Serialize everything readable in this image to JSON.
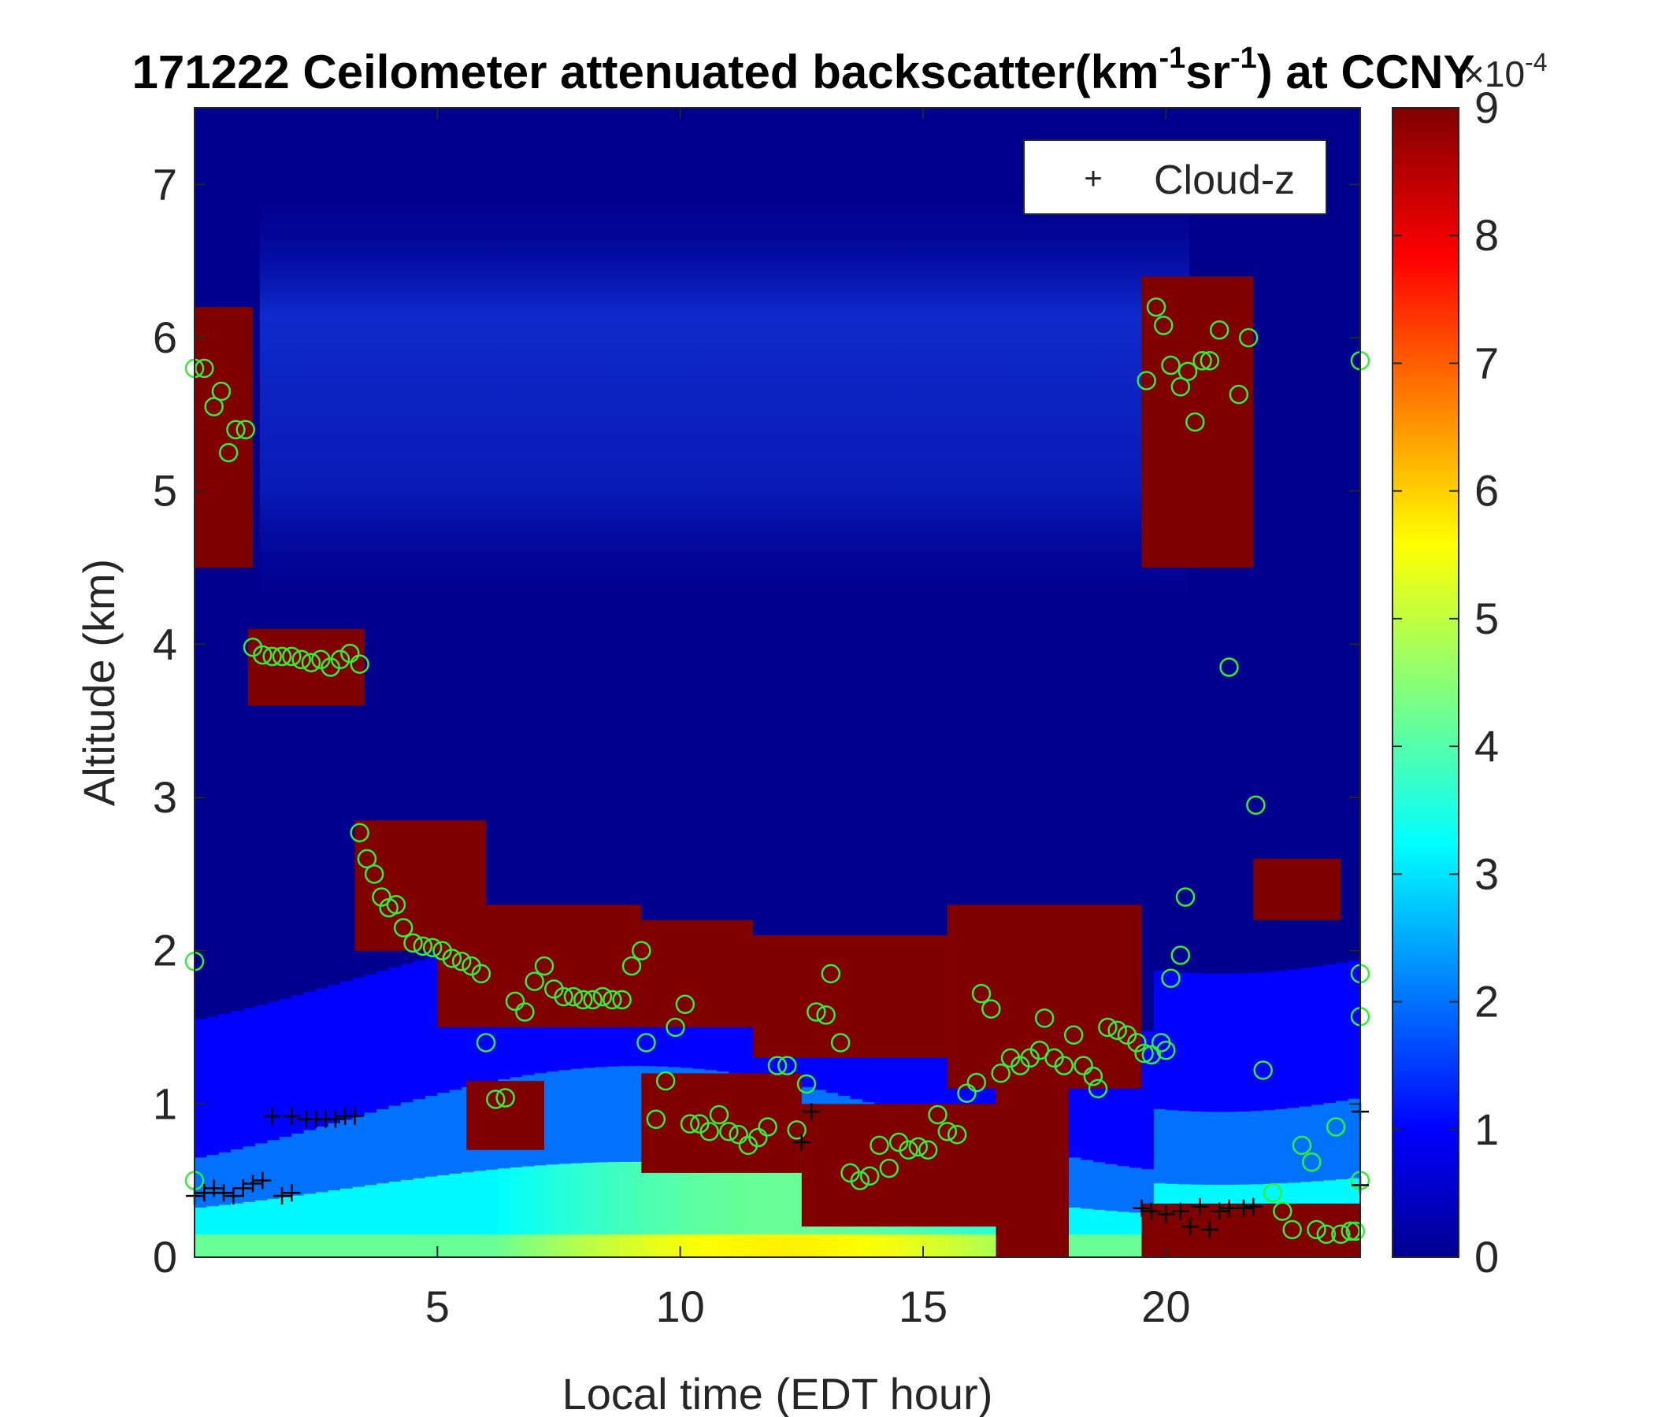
{
  "chart_data": {
    "type": "heatmap",
    "title_main": "171222 Ceilometer attenuated backscatter(km",
    "title_sup1": "-1",
    "title_mid": "sr",
    "title_sup2": "-1",
    "title_end": ") at CCNY",
    "xlabel": "Local time (EDT hour)",
    "ylabel": "Altitude (km)",
    "xlim": [
      0,
      24
    ],
    "ylim": [
      0,
      7.5
    ],
    "xticks": [
      5,
      10,
      15,
      20
    ],
    "yticks": [
      0,
      1,
      2,
      3,
      4,
      5,
      6,
      7
    ],
    "colorbar": {
      "range": [
        0,
        9
      ],
      "ticks": [
        0,
        1,
        2,
        3,
        4,
        5,
        6,
        7,
        8,
        9
      ],
      "exponent_base": "×10",
      "exponent_power": "-4",
      "colormap": "jet"
    },
    "legend": {
      "placement": "top-right",
      "label": "Cloud-z",
      "marker": "+"
    },
    "layers": [
      {
        "x0": 0,
        "x1": 1.2,
        "y0": 4.5,
        "y1": 6.2,
        "v": 9
      },
      {
        "x0": 1.1,
        "x1": 3.5,
        "y0": 3.6,
        "y1": 4.1,
        "v": 9
      },
      {
        "x0": 3.3,
        "x1": 6,
        "y0": 2.0,
        "y1": 2.85,
        "v": 9
      },
      {
        "x0": 5,
        "x1": 9.2,
        "y0": 1.5,
        "y1": 2.3,
        "v": 9
      },
      {
        "x0": 9.2,
        "x1": 11.5,
        "y0": 1.5,
        "y1": 2.2,
        "v": 9
      },
      {
        "x0": 11.5,
        "x1": 15.5,
        "y0": 1.3,
        "y1": 2.1,
        "v": 9
      },
      {
        "x0": 15.5,
        "x1": 19.5,
        "y0": 1.1,
        "y1": 2.3,
        "v": 9
      },
      {
        "x0": 19.5,
        "x1": 21.8,
        "y0": 4.5,
        "y1": 6.4,
        "v": 9
      },
      {
        "x0": 21.8,
        "x1": 23.6,
        "y0": 2.2,
        "y1": 2.6,
        "v": 9
      },
      {
        "x0": 5.6,
        "x1": 7.2,
        "y0": 0.7,
        "y1": 1.15,
        "v": 9
      },
      {
        "x0": 9.2,
        "x1": 12.5,
        "y0": 0.55,
        "y1": 1.2,
        "v": 9
      },
      {
        "x0": 12.5,
        "x1": 16.5,
        "y0": 0.2,
        "y1": 1.0,
        "v": 9
      },
      {
        "x0": 16.5,
        "x1": 18,
        "y0": 0,
        "y1": 1.5,
        "v": 9
      },
      {
        "x0": 19.5,
        "x1": 24,
        "y0": 0,
        "y1": 0.35,
        "v": 9
      }
    ],
    "cloud_base": [
      {
        "x": 0.0,
        "y": 5.8
      },
      {
        "x": 0.2,
        "y": 5.8
      },
      {
        "x": 0.4,
        "y": 5.55
      },
      {
        "x": 0.55,
        "y": 5.65
      },
      {
        "x": 0.7,
        "y": 5.25
      },
      {
        "x": 0.85,
        "y": 5.4
      },
      {
        "x": 1.05,
        "y": 5.4
      },
      {
        "x": 1.2,
        "y": 3.98
      },
      {
        "x": 1.4,
        "y": 3.93
      },
      {
        "x": 1.6,
        "y": 3.92
      },
      {
        "x": 1.8,
        "y": 3.92
      },
      {
        "x": 2.0,
        "y": 3.92
      },
      {
        "x": 2.2,
        "y": 3.9
      },
      {
        "x": 2.4,
        "y": 3.88
      },
      {
        "x": 2.6,
        "y": 3.9
      },
      {
        "x": 2.8,
        "y": 3.85
      },
      {
        "x": 3.0,
        "y": 3.9
      },
      {
        "x": 3.2,
        "y": 3.94
      },
      {
        "x": 3.4,
        "y": 3.87
      },
      {
        "x": 3.4,
        "y": 2.77
      },
      {
        "x": 3.55,
        "y": 2.6
      },
      {
        "x": 3.7,
        "y": 2.5
      },
      {
        "x": 3.85,
        "y": 2.35
      },
      {
        "x": 4.0,
        "y": 2.28
      },
      {
        "x": 4.15,
        "y": 2.3
      },
      {
        "x": 4.3,
        "y": 2.15
      },
      {
        "x": 4.5,
        "y": 2.05
      },
      {
        "x": 4.7,
        "y": 2.03
      },
      {
        "x": 4.9,
        "y": 2.02
      },
      {
        "x": 5.1,
        "y": 2.0
      },
      {
        "x": 5.3,
        "y": 1.95
      },
      {
        "x": 5.5,
        "y": 1.93
      },
      {
        "x": 5.7,
        "y": 1.9
      },
      {
        "x": 5.9,
        "y": 1.85
      },
      {
        "x": 6.0,
        "y": 1.4
      },
      {
        "x": 6.2,
        "y": 1.03
      },
      {
        "x": 6.4,
        "y": 1.04
      },
      {
        "x": 6.6,
        "y": 1.67
      },
      {
        "x": 6.8,
        "y": 1.6
      },
      {
        "x": 7.0,
        "y": 1.8
      },
      {
        "x": 7.2,
        "y": 1.9
      },
      {
        "x": 7.4,
        "y": 1.75
      },
      {
        "x": 7.6,
        "y": 1.7
      },
      {
        "x": 7.8,
        "y": 1.7
      },
      {
        "x": 8.0,
        "y": 1.68
      },
      {
        "x": 8.2,
        "y": 1.68
      },
      {
        "x": 8.4,
        "y": 1.7
      },
      {
        "x": 8.6,
        "y": 1.68
      },
      {
        "x": 8.8,
        "y": 1.68
      },
      {
        "x": 9.0,
        "y": 1.9
      },
      {
        "x": 9.2,
        "y": 2.0
      },
      {
        "x": 9.3,
        "y": 1.4
      },
      {
        "x": 9.5,
        "y": 0.9
      },
      {
        "x": 9.7,
        "y": 1.15
      },
      {
        "x": 9.9,
        "y": 1.5
      },
      {
        "x": 10.1,
        "y": 1.65
      },
      {
        "x": 10.2,
        "y": 0.87
      },
      {
        "x": 10.4,
        "y": 0.87
      },
      {
        "x": 10.6,
        "y": 0.82
      },
      {
        "x": 10.8,
        "y": 0.93
      },
      {
        "x": 11.0,
        "y": 0.82
      },
      {
        "x": 11.2,
        "y": 0.8
      },
      {
        "x": 11.4,
        "y": 0.73
      },
      {
        "x": 11.6,
        "y": 0.78
      },
      {
        "x": 11.8,
        "y": 0.85
      },
      {
        "x": 12.0,
        "y": 1.25
      },
      {
        "x": 12.2,
        "y": 1.25
      },
      {
        "x": 12.4,
        "y": 0.83
      },
      {
        "x": 12.6,
        "y": 1.13
      },
      {
        "x": 12.8,
        "y": 1.6
      },
      {
        "x": 13.0,
        "y": 1.58
      },
      {
        "x": 13.1,
        "y": 1.85
      },
      {
        "x": 13.3,
        "y": 1.4
      },
      {
        "x": 13.5,
        "y": 0.55
      },
      {
        "x": 13.7,
        "y": 0.5
      },
      {
        "x": 13.9,
        "y": 0.53
      },
      {
        "x": 14.1,
        "y": 0.73
      },
      {
        "x": 14.3,
        "y": 0.58
      },
      {
        "x": 14.5,
        "y": 0.75
      },
      {
        "x": 14.7,
        "y": 0.7
      },
      {
        "x": 14.9,
        "y": 0.72
      },
      {
        "x": 15.1,
        "y": 0.7
      },
      {
        "x": 15.3,
        "y": 0.93
      },
      {
        "x": 15.5,
        "y": 0.82
      },
      {
        "x": 15.7,
        "y": 0.8
      },
      {
        "x": 15.9,
        "y": 1.07
      },
      {
        "x": 16.1,
        "y": 1.14
      },
      {
        "x": 16.2,
        "y": 1.72
      },
      {
        "x": 16.4,
        "y": 1.62
      },
      {
        "x": 16.6,
        "y": 1.2
      },
      {
        "x": 16.8,
        "y": 1.3
      },
      {
        "x": 17.0,
        "y": 1.25
      },
      {
        "x": 17.2,
        "y": 1.3
      },
      {
        "x": 17.4,
        "y": 1.35
      },
      {
        "x": 17.5,
        "y": 1.56
      },
      {
        "x": 17.7,
        "y": 1.3
      },
      {
        "x": 17.9,
        "y": 1.25
      },
      {
        "x": 18.1,
        "y": 1.45
      },
      {
        "x": 18.3,
        "y": 1.25
      },
      {
        "x": 18.5,
        "y": 1.18
      },
      {
        "x": 18.6,
        "y": 1.1
      },
      {
        "x": 18.8,
        "y": 1.5
      },
      {
        "x": 19.0,
        "y": 1.48
      },
      {
        "x": 19.2,
        "y": 1.45
      },
      {
        "x": 19.4,
        "y": 1.4
      },
      {
        "x": 19.55,
        "y": 1.33
      },
      {
        "x": 19.7,
        "y": 1.32
      },
      {
        "x": 19.9,
        "y": 1.4
      },
      {
        "x": 20.0,
        "y": 1.35
      },
      {
        "x": 20.1,
        "y": 1.82
      },
      {
        "x": 20.3,
        "y": 1.97
      },
      {
        "x": 20.4,
        "y": 2.35
      },
      {
        "x": 19.6,
        "y": 5.72
      },
      {
        "x": 19.8,
        "y": 6.2
      },
      {
        "x": 19.95,
        "y": 6.08
      },
      {
        "x": 20.1,
        "y": 5.82
      },
      {
        "x": 20.3,
        "y": 5.68
      },
      {
        "x": 20.45,
        "y": 5.78
      },
      {
        "x": 20.6,
        "y": 5.45
      },
      {
        "x": 20.75,
        "y": 5.85
      },
      {
        "x": 20.9,
        "y": 5.85
      },
      {
        "x": 21.1,
        "y": 6.05
      },
      {
        "x": 21.3,
        "y": 3.85
      },
      {
        "x": 21.5,
        "y": 5.63
      },
      {
        "x": 21.7,
        "y": 6.0
      },
      {
        "x": 21.85,
        "y": 2.95
      },
      {
        "x": 22.0,
        "y": 1.22
      },
      {
        "x": 22.2,
        "y": 0.42
      },
      {
        "x": 22.4,
        "y": 0.3
      },
      {
        "x": 22.6,
        "y": 0.18
      },
      {
        "x": 22.8,
        "y": 0.73
      },
      {
        "x": 23.0,
        "y": 0.62
      },
      {
        "x": 23.1,
        "y": 0.18
      },
      {
        "x": 23.3,
        "y": 0.15
      },
      {
        "x": 23.5,
        "y": 0.85
      },
      {
        "x": 23.6,
        "y": 0.15
      },
      {
        "x": 23.8,
        "y": 0.17
      },
      {
        "x": 23.9,
        "y": 0.17
      },
      {
        "x": 24.0,
        "y": 0.5
      },
      {
        "x": 24.0,
        "y": 1.57
      },
      {
        "x": 24.0,
        "y": 1.85
      },
      {
        "x": 24.0,
        "y": 5.85
      },
      {
        "x": 0.0,
        "y": 1.93
      },
      {
        "x": 0.0,
        "y": 0.5
      }
    ],
    "cloud_z": [
      {
        "x": 0.0,
        "y": 0.4
      },
      {
        "x": 0.2,
        "y": 0.42
      },
      {
        "x": 0.4,
        "y": 0.45
      },
      {
        "x": 0.6,
        "y": 0.42
      },
      {
        "x": 0.8,
        "y": 0.4
      },
      {
        "x": 1.0,
        "y": 0.45
      },
      {
        "x": 1.2,
        "y": 0.48
      },
      {
        "x": 1.4,
        "y": 0.5
      },
      {
        "x": 1.8,
        "y": 0.4
      },
      {
        "x": 2.0,
        "y": 0.42
      },
      {
        "x": 1.6,
        "y": 0.92
      },
      {
        "x": 2.0,
        "y": 0.92
      },
      {
        "x": 2.3,
        "y": 0.9
      },
      {
        "x": 2.5,
        "y": 0.9
      },
      {
        "x": 2.7,
        "y": 0.9
      },
      {
        "x": 2.9,
        "y": 0.9
      },
      {
        "x": 3.1,
        "y": 0.92
      },
      {
        "x": 3.3,
        "y": 0.92
      },
      {
        "x": 12.5,
        "y": 0.75
      },
      {
        "x": 12.7,
        "y": 0.95
      },
      {
        "x": 19.5,
        "y": 0.32
      },
      {
        "x": 19.7,
        "y": 0.3
      },
      {
        "x": 20.0,
        "y": 0.28
      },
      {
        "x": 20.3,
        "y": 0.3
      },
      {
        "x": 20.5,
        "y": 0.2
      },
      {
        "x": 20.7,
        "y": 0.33
      },
      {
        "x": 20.9,
        "y": 0.18
      },
      {
        "x": 21.1,
        "y": 0.3
      },
      {
        "x": 21.3,
        "y": 0.32
      },
      {
        "x": 21.6,
        "y": 0.32
      },
      {
        "x": 21.8,
        "y": 0.33
      },
      {
        "x": 24.0,
        "y": 0.95
      },
      {
        "x": 24.0,
        "y": 0.47
      }
    ]
  }
}
